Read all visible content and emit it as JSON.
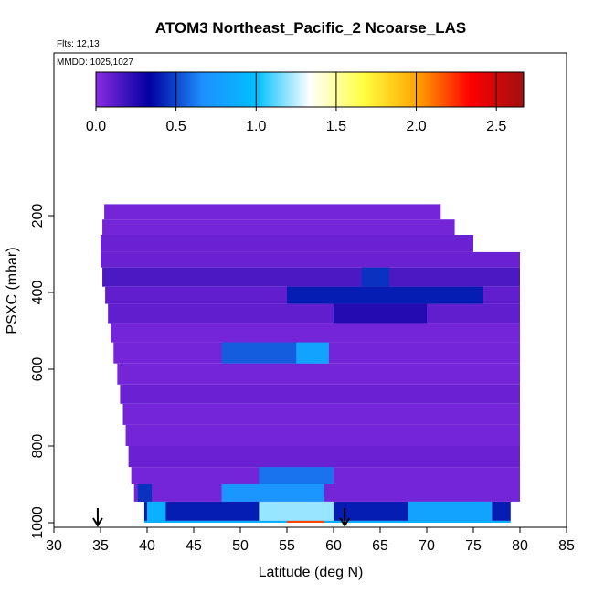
{
  "flights_text": "Flts: 12,13",
  "mmdd_text": "MMDD: 1025,1027",
  "chart_data": {
    "type": "heatmap",
    "title": "ATOM3 Northeast_Pacific_2 Ncoarse_LAS",
    "xlabel": "Latitude (deg N)",
    "ylabel": "PSXC (mbar)",
    "xlim": [
      30,
      85
    ],
    "ylim": [
      1000,
      0
    ],
    "x_ticks": [
      30,
      35,
      40,
      45,
      50,
      55,
      60,
      65,
      70,
      75,
      80,
      85
    ],
    "y_ticks": [
      200,
      400,
      600,
      800,
      1000
    ],
    "colorbar": {
      "range": [
        0,
        2.67
      ],
      "ticks": [
        0.0,
        0.5,
        1.0,
        1.5,
        2.0,
        2.5
      ],
      "tick_labels": [
        "0.0",
        "0.5",
        "1.0",
        "1.5",
        "2.0",
        "2.5"
      ],
      "colors": [
        "#8a2be2",
        "#0000a0",
        "#1e90ff",
        "#00bfff",
        "#ffffff",
        "#ffff40",
        "#ffa500",
        "#ff0000",
        "#a01010"
      ]
    },
    "arrows_lat": [
      34.7,
      61.2
    ],
    "profiles": [
      {
        "p_top": 170,
        "p_bot": 210,
        "x0": 35.4,
        "x1": 71.5,
        "value": 0.05
      },
      {
        "p_top": 210,
        "p_bot": 250,
        "x0": 35.2,
        "x1": 73.0,
        "value": 0.05
      },
      {
        "p_top": 250,
        "p_bot": 295,
        "x0": 35.0,
        "x1": 75.0,
        "value": 0.08
      },
      {
        "p_top": 295,
        "p_bot": 335,
        "x0": 35.0,
        "x1": 80.0,
        "value": 0.08
      },
      {
        "p_top": 335,
        "p_bot": 385,
        "x0": 35.2,
        "x1": 80.0,
        "value": 0.15
      },
      {
        "p_top": 385,
        "p_bot": 430,
        "x0": 35.5,
        "x1": 80.0,
        "value": 0.1
      },
      {
        "p_top": 430,
        "p_bot": 480,
        "x0": 35.8,
        "x1": 80.0,
        "value": 0.1
      },
      {
        "p_top": 480,
        "p_bot": 530,
        "x0": 36.1,
        "x1": 80.0,
        "value": 0.05
      },
      {
        "p_top": 530,
        "p_bot": 585,
        "x0": 36.4,
        "x1": 80.0,
        "value": 0.05
      },
      {
        "p_top": 585,
        "p_bot": 640,
        "x0": 36.8,
        "x1": 80.0,
        "value": 0.05
      },
      {
        "p_top": 640,
        "p_bot": 690,
        "x0": 37.1,
        "x1": 80.0,
        "value": 0.08
      },
      {
        "p_top": 690,
        "p_bot": 745,
        "x0": 37.4,
        "x1": 80.0,
        "value": 0.05
      },
      {
        "p_top": 745,
        "p_bot": 800,
        "x0": 37.7,
        "x1": 80.0,
        "value": 0.05
      },
      {
        "p_top": 800,
        "p_bot": 855,
        "x0": 38.0,
        "x1": 80.0,
        "value": 0.08
      },
      {
        "p_top": 855,
        "p_bot": 900,
        "x0": 38.3,
        "x1": 80.0,
        "value": 0.05
      },
      {
        "p_top": 900,
        "p_bot": 945,
        "x0": 38.6,
        "x1": 80.0,
        "value": 0.05
      },
      {
        "p_top": 945,
        "p_bot": 995,
        "x0": 39.7,
        "x1": 79.0,
        "value": 0.4
      },
      {
        "p_top": 995,
        "p_bot": 1000,
        "x0": 39.7,
        "x1": 79.0,
        "value": 0.9
      }
    ],
    "features": [
      {
        "p_top": 335,
        "p_bot": 385,
        "x0": 63.0,
        "x1": 66.0,
        "value": 0.45
      },
      {
        "p_top": 385,
        "p_bot": 430,
        "x0": 55.0,
        "x1": 76.0,
        "value": 0.4
      },
      {
        "p_top": 430,
        "p_bot": 480,
        "x0": 60.0,
        "x1": 70.0,
        "value": 0.25
      },
      {
        "p_top": 530,
        "p_bot": 585,
        "x0": 48.0,
        "x1": 58.0,
        "value": 0.55
      },
      {
        "p_top": 530,
        "p_bot": 585,
        "x0": 56.0,
        "x1": 59.5,
        "value": 0.8
      },
      {
        "p_top": 855,
        "p_bot": 900,
        "x0": 52.0,
        "x1": 60.0,
        "value": 0.6
      },
      {
        "p_top": 900,
        "p_bot": 945,
        "x0": 48.0,
        "x1": 59.0,
        "value": 0.7
      },
      {
        "p_top": 900,
        "p_bot": 945,
        "x0": 39.0,
        "x1": 40.5,
        "value": 0.45
      },
      {
        "p_top": 945,
        "p_bot": 995,
        "x0": 52.0,
        "x1": 60.0,
        "value": 1.2
      },
      {
        "p_top": 945,
        "p_bot": 995,
        "x0": 40.0,
        "x1": 42.0,
        "value": 0.9
      },
      {
        "p_top": 995,
        "p_bot": 1000,
        "x0": 55.0,
        "x1": 59.0,
        "value": 2.2
      },
      {
        "p_top": 945,
        "p_bot": 995,
        "x0": 68.0,
        "x1": 77.0,
        "value": 0.8
      }
    ]
  }
}
